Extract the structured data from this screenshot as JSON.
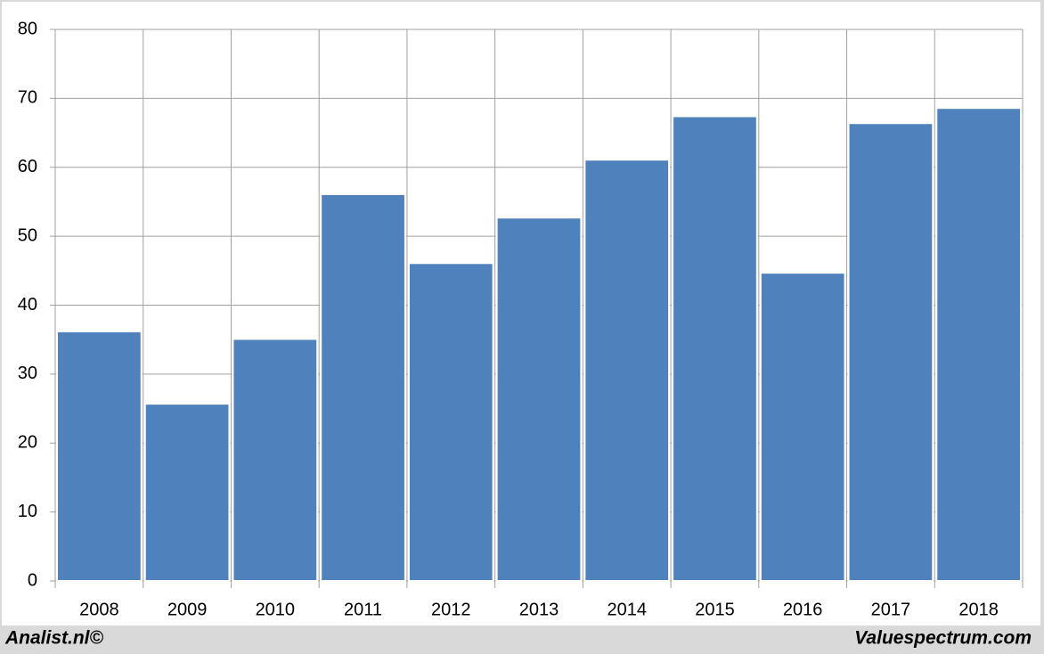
{
  "chart_data": {
    "type": "bar",
    "categories": [
      "2008",
      "2009",
      "2010",
      "2011",
      "2012",
      "2013",
      "2014",
      "2015",
      "2016",
      "2017",
      "2018"
    ],
    "values": [
      36.2,
      25.7,
      35.1,
      56.1,
      46.1,
      52.7,
      61.1,
      67.4,
      44.7,
      66.4,
      68.6
    ],
    "color": "#4f81bd",
    "ylim": [
      0,
      80
    ],
    "yticks": [
      0,
      10,
      20,
      30,
      40,
      50,
      60,
      70,
      80
    ],
    "grid": true,
    "footer_left": "Analist.nl©",
    "footer_right": "Valuespectrum.com"
  }
}
